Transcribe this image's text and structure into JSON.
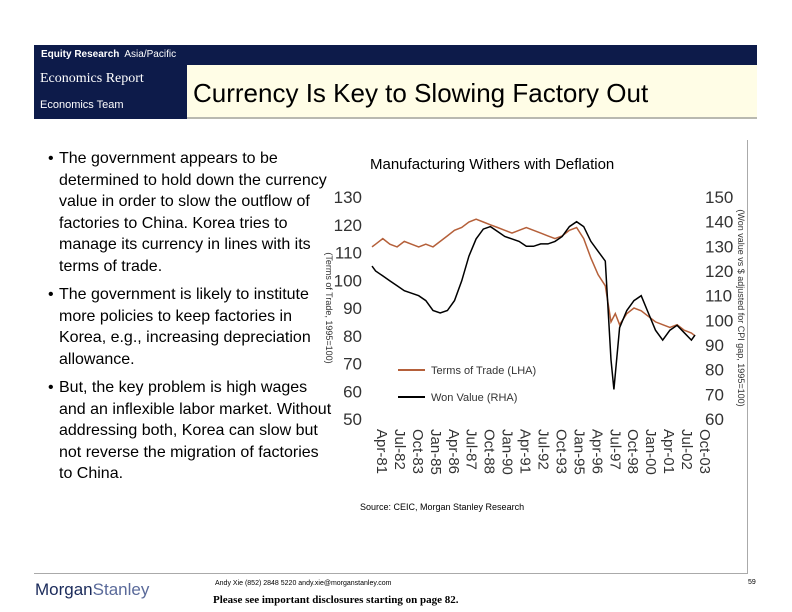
{
  "header": {
    "section": "Equity Research",
    "region": "Asia/Pacific",
    "report_type": "Economics Report",
    "team": "Economics Team",
    "title": "Currency Is Key to Slowing Factory Out"
  },
  "bullets": [
    "The government appears to be determined to hold down the currency value in order to slow the outflow of factories to China. Korea tries to manage its currency in lines with its terms of trade.",
    "The government is likely to institute more policies to keep factories in Korea, e.g., increasing depreciation allowance.",
    "But, the key problem is high wages and an inflexible labor market.  Without addressing both, Korea can slow but not reverse the migration of factories to China."
  ],
  "bullet_marker": "•",
  "chart_data": {
    "type": "line",
    "title": "Manufacturing Withers with Deflation",
    "ylabel": "(Terms of Trade, 1995=100)",
    "y2label": "(Won value vs $ adjusted for CPI gap, 1995=100)",
    "ylim": [
      50,
      130
    ],
    "y2lim": [
      60,
      150
    ],
    "yticks": [
      50,
      60,
      70,
      80,
      90,
      100,
      110,
      120,
      130
    ],
    "y2ticks": [
      60,
      70,
      80,
      90,
      100,
      110,
      120,
      130,
      140,
      150
    ],
    "xticks": [
      "Apr-81",
      "Jul-82",
      "Oct-83",
      "Jan-85",
      "Apr-86",
      "Jul-87",
      "Oct-88",
      "Jan-90",
      "Apr-91",
      "Jul-92",
      "Oct-93",
      "Jan-95",
      "Apr-96",
      "Jul-97",
      "Oct-98",
      "Jan-00",
      "Apr-01",
      "Jul-02",
      "Oct-03"
    ],
    "series": [
      {
        "name": "Terms of Trade (LHA)",
        "axis": "left",
        "color": "#b5603a",
        "x": [
          1981.25,
          1981.5,
          1982,
          1982.5,
          1983,
          1983.5,
          1984,
          1984.5,
          1985,
          1985.5,
          1986,
          1986.5,
          1987,
          1987.5,
          1988,
          1988.5,
          1989,
          1989.5,
          1990,
          1990.5,
          1991,
          1991.5,
          1992,
          1992.5,
          1993,
          1993.5,
          1994,
          1994.5,
          1995,
          1995.5,
          1996,
          1996.5,
          1997,
          1997.5,
          1997.9,
          1998.2,
          1998.5,
          1999,
          1999.5,
          2000,
          2000.5,
          2001,
          2001.5,
          2002,
          2002.5,
          2003,
          2003.5,
          2003.75
        ],
        "values": [
          112,
          113,
          115,
          113,
          112,
          114,
          113,
          112,
          113,
          112,
          114,
          116,
          118,
          119,
          121,
          122,
          121,
          120,
          119,
          118,
          117,
          118,
          119,
          118,
          117,
          116,
          115,
          116,
          118,
          119,
          115,
          108,
          102,
          98,
          85,
          88,
          84,
          88,
          90,
          89,
          87,
          85,
          84,
          83,
          84,
          82,
          81,
          80
        ]
      },
      {
        "name": "Won Value (RHA)",
        "axis": "right",
        "color": "#000000",
        "x": [
          1981.25,
          1981.5,
          1982,
          1982.5,
          1983,
          1983.5,
          1984,
          1984.5,
          1985,
          1985.5,
          1986,
          1986.5,
          1987,
          1987.5,
          1988,
          1988.5,
          1989,
          1989.5,
          1990,
          1990.5,
          1991,
          1991.5,
          1992,
          1992.5,
          1993,
          1993.5,
          1994,
          1994.5,
          1995,
          1995.5,
          1996,
          1996.5,
          1997,
          1997.5,
          1997.9,
          1998.1,
          1998.5,
          1999,
          1999.5,
          2000,
          2000.5,
          2001,
          2001.5,
          2002,
          2002.5,
          2003,
          2003.5,
          2003.75
        ],
        "values": [
          122,
          120,
          118,
          116,
          114,
          112,
          111,
          110,
          108,
          104,
          103,
          104,
          108,
          116,
          126,
          133,
          137,
          138,
          136,
          134,
          133,
          132,
          130,
          130,
          131,
          131,
          132,
          134,
          138,
          140,
          138,
          132,
          128,
          124,
          84,
          72,
          97,
          104,
          108,
          110,
          103,
          96,
          92,
          96,
          98,
          95,
          92,
          94
        ]
      }
    ],
    "legend_placement": "bottom-center",
    "grid": false
  },
  "source": "Source: CEIC, Morgan Stanley Research",
  "footer": {
    "logo_main": "Morgan",
    "logo_light": "Stanley",
    "contact": "Andy Xie (852) 2848 5220  andy.xie@morganstanley.com",
    "disclosure": "Please see important disclosures starting on page 82.",
    "page": "59"
  }
}
